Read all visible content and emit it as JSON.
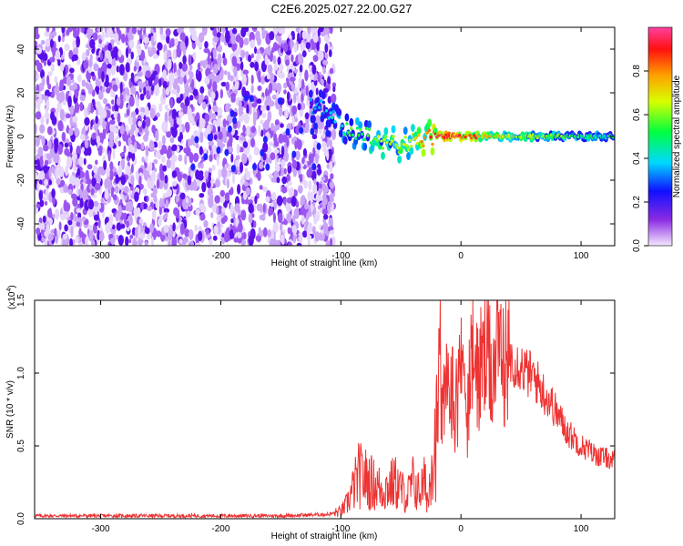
{
  "title": "C2E6.2025.027.22.00.G27",
  "chart_data": [
    {
      "type": "heatmap",
      "xlabel": "Height of straight line (km)",
      "ylabel": "Frequency (Hz)",
      "xlim": [
        -355,
        128
      ],
      "ylim": [
        -50,
        50
      ],
      "x_ticks": [
        -300,
        -200,
        -100,
        0,
        100
      ],
      "x_tick_labels": [
        "-300",
        "-200",
        "-100",
        "0",
        "100"
      ],
      "y_ticks": [
        -40,
        -20,
        0,
        20,
        40
      ],
      "y_tick_labels": [
        "-40",
        "-20",
        "0",
        "20",
        "40"
      ],
      "colorbar": {
        "label": "Normalized spectral amplitude",
        "range": [
          0,
          1
        ],
        "ticks": [
          0.0,
          0.2,
          0.4,
          0.6,
          0.8
        ],
        "tick_labels": [
          "0.0",
          "0.2",
          "0.4",
          "0.6",
          "0.8"
        ]
      },
      "noise_region": {
        "x": [
          -355,
          -110
        ],
        "y": [
          -50,
          50
        ]
      },
      "signal_track": [
        {
          "x": -125,
          "y": 14,
          "amp": 0.3
        },
        {
          "x": -112,
          "y": 12,
          "amp": 0.35
        },
        {
          "x": -100,
          "y": 6,
          "amp": 0.4
        },
        {
          "x": -90,
          "y": 0,
          "amp": 0.55
        },
        {
          "x": -80,
          "y": 2,
          "amp": 0.5
        },
        {
          "x": -70,
          "y": -1,
          "amp": 0.6
        },
        {
          "x": -60,
          "y": -3,
          "amp": 0.6
        },
        {
          "x": -50,
          "y": -4,
          "amp": 0.65
        },
        {
          "x": -40,
          "y": -2,
          "amp": 0.7
        },
        {
          "x": -30,
          "y": -1,
          "amp": 0.75
        },
        {
          "x": -20,
          "y": 0,
          "amp": 0.9
        },
        {
          "x": -10,
          "y": 0,
          "amp": 0.95
        },
        {
          "x": 0,
          "y": 0,
          "amp": 0.9
        },
        {
          "x": 20,
          "y": 0,
          "amp": 0.75
        },
        {
          "x": 40,
          "y": 0,
          "amp": 0.65
        },
        {
          "x": 60,
          "y": 0,
          "amp": 0.6
        },
        {
          "x": 80,
          "y": 0,
          "amp": 0.55
        },
        {
          "x": 100,
          "y": 0,
          "amp": 0.5
        },
        {
          "x": 128,
          "y": 0,
          "amp": 0.45
        }
      ]
    },
    {
      "type": "line",
      "xlabel": "Height of straight line (km)",
      "ylabel": "SNR (10 * v/v)",
      "y_multiplier": "(x10",
      "y_multiplier_exp": "4",
      "y_multiplier_close": ")",
      "xlim": [
        -355,
        128
      ],
      "ylim": [
        0,
        1.5
      ],
      "x_ticks": [
        -300,
        -200,
        -100,
        0,
        100
      ],
      "x_tick_labels": [
        "-300",
        "-200",
        "-100",
        "0",
        "100"
      ],
      "y_ticks": [
        0,
        0.5,
        1.0,
        1.5
      ],
      "y_tick_labels": [
        "0.0",
        "0.5",
        "1.0",
        "1.5"
      ],
      "line_color": "#ee3333",
      "series": [
        {
          "x": [
            -355,
            -300,
            -250,
            -200,
            -150,
            -110,
            -100,
            -95,
            -90,
            -85,
            -80,
            -75,
            -70,
            -65,
            -60,
            -55,
            -50,
            -45,
            -40,
            -35,
            -30,
            -27,
            -25,
            -22,
            -20,
            -18,
            -15,
            -12,
            -10,
            -5,
            0,
            5,
            10,
            15,
            20,
            25,
            30,
            35,
            40,
            45,
            50,
            55,
            60,
            65,
            70,
            75,
            80,
            85,
            90,
            95,
            100,
            105,
            110,
            115,
            120,
            128
          ],
          "y": [
            0.02,
            0.02,
            0.02,
            0.02,
            0.02,
            0.03,
            0.05,
            0.1,
            0.2,
            0.3,
            0.28,
            0.25,
            0.22,
            0.2,
            0.22,
            0.25,
            0.2,
            0.15,
            0.25,
            0.18,
            0.25,
            0.1,
            0.45,
            0.5,
            0.6,
            0.9,
            0.75,
            0.85,
            0.95,
            0.8,
            1.0,
            0.9,
            1.05,
            1.0,
            1.1,
            1.05,
            1.1,
            1.15,
            1.12,
            1.08,
            1.05,
            1.0,
            0.98,
            0.92,
            0.85,
            0.8,
            0.72,
            0.65,
            0.58,
            0.55,
            0.5,
            0.48,
            0.45,
            0.43,
            0.42,
            0.4
          ]
        }
      ]
    }
  ]
}
